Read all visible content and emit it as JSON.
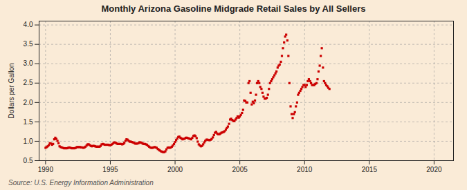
{
  "chart_data": {
    "type": "scatter",
    "title": "Monthly Arizona Gasoline Midgrade Retail Sales by All Sellers",
    "y_label": "Dollars per Gallon",
    "source": "Source: U.S. Energy Information Administration",
    "color": "#cc0000",
    "marker": "square",
    "grid": true,
    "xlim": [
      1989.5,
      2021.5
    ],
    "ylim": [
      0.5,
      4.1
    ],
    "xticks": [
      1990,
      1995,
      2000,
      2005,
      2010,
      2015,
      2020
    ],
    "yticks": [
      0.5,
      {
        "value": 1.0,
        "label": "1.0"
      },
      1.5,
      {
        "value": 2.0,
        "label": "2.0"
      },
      2.5,
      {
        "value": 3.0,
        "label": "3.0"
      },
      3.5,
      {
        "value": 4.0,
        "label": "4.0"
      }
    ],
    "x": [
      1990.0,
      1990.08,
      1990.17,
      1990.25,
      1990.33,
      1990.42,
      1990.5,
      1990.58,
      1990.67,
      1990.75,
      1990.83,
      1990.92,
      1991.0,
      1991.08,
      1991.17,
      1991.25,
      1991.33,
      1991.42,
      1991.5,
      1991.58,
      1991.67,
      1991.75,
      1991.83,
      1991.92,
      1992.0,
      1992.08,
      1992.17,
      1992.25,
      1992.33,
      1992.42,
      1992.5,
      1992.58,
      1992.67,
      1992.75,
      1992.83,
      1992.92,
      1993.0,
      1993.08,
      1993.17,
      1993.25,
      1993.33,
      1993.42,
      1993.5,
      1993.58,
      1993.67,
      1993.75,
      1993.83,
      1993.92,
      1994.0,
      1994.08,
      1994.17,
      1994.25,
      1994.33,
      1994.42,
      1994.5,
      1994.58,
      1994.67,
      1994.75,
      1994.83,
      1994.92,
      1995.0,
      1995.08,
      1995.17,
      1995.25,
      1995.33,
      1995.42,
      1995.5,
      1995.58,
      1995.67,
      1995.75,
      1995.83,
      1995.92,
      1996.0,
      1996.08,
      1996.17,
      1996.25,
      1996.33,
      1996.42,
      1996.5,
      1996.58,
      1996.67,
      1996.75,
      1996.83,
      1996.92,
      1997.0,
      1997.08,
      1997.17,
      1997.25,
      1997.33,
      1997.42,
      1997.5,
      1997.58,
      1997.67,
      1997.75,
      1997.83,
      1997.92,
      1998.0,
      1998.08,
      1998.17,
      1998.25,
      1998.33,
      1998.42,
      1998.5,
      1998.58,
      1998.67,
      1998.75,
      1998.83,
      1998.92,
      1999.0,
      1999.08,
      1999.17,
      1999.25,
      1999.33,
      1999.42,
      1999.5,
      1999.58,
      1999.67,
      1999.75,
      1999.83,
      1999.92,
      2000.0,
      2000.08,
      2000.17,
      2000.25,
      2000.33,
      2000.42,
      2000.5,
      2000.58,
      2000.67,
      2000.75,
      2000.83,
      2000.92,
      2001.0,
      2001.08,
      2001.17,
      2001.25,
      2001.33,
      2001.42,
      2001.5,
      2001.58,
      2001.67,
      2001.75,
      2001.83,
      2001.92,
      2002.0,
      2002.08,
      2002.17,
      2002.25,
      2002.33,
      2002.42,
      2002.5,
      2002.58,
      2002.67,
      2002.75,
      2002.83,
      2002.92,
      2003.0,
      2003.08,
      2003.17,
      2003.25,
      2003.33,
      2003.42,
      2003.5,
      2003.58,
      2003.67,
      2003.75,
      2003.83,
      2003.92,
      2004.0,
      2004.08,
      2004.17,
      2004.25,
      2004.33,
      2004.42,
      2004.5,
      2004.58,
      2004.67,
      2004.75,
      2004.83,
      2004.92,
      2005.0,
      2005.08,
      2005.17,
      2005.25,
      2005.33,
      2005.42,
      2005.5,
      2005.58,
      2005.67,
      2005.75,
      2005.83,
      2005.92,
      2006.0,
      2006.08,
      2006.17,
      2006.25,
      2006.33,
      2006.42,
      2006.5,
      2006.58,
      2006.67,
      2006.75,
      2006.83,
      2006.92,
      2007.0,
      2007.08,
      2007.17,
      2007.25,
      2007.33,
      2007.42,
      2007.5,
      2007.58,
      2007.67,
      2007.75,
      2007.83,
      2007.92,
      2008.0,
      2008.08,
      2008.17,
      2008.25,
      2008.33,
      2008.42,
      2008.5,
      2008.58,
      2008.67,
      2008.75,
      2008.83,
      2008.92,
      2009.0,
      2009.08,
      2009.17,
      2009.25,
      2009.33,
      2009.42,
      2009.5,
      2009.58,
      2009.67,
      2009.75,
      2009.83,
      2009.92,
      2010.0,
      2010.08,
      2010.17,
      2010.25,
      2010.33,
      2010.42,
      2010.5,
      2010.58,
      2010.67,
      2010.75,
      2010.83,
      2010.92,
      2011.0,
      2011.08,
      2011.17,
      2011.25,
      2011.33,
      2011.42,
      2011.5,
      2011.58,
      2011.67,
      2011.75,
      2011.83,
      2011.92
    ],
    "values": [
      0.83,
      0.85,
      0.87,
      0.9,
      0.95,
      0.94,
      0.91,
      0.93,
      1.05,
      1.09,
      1.06,
      1.01,
      0.95,
      0.87,
      0.85,
      0.84,
      0.83,
      0.82,
      0.82,
      0.82,
      0.82,
      0.83,
      0.84,
      0.83,
      0.82,
      0.82,
      0.82,
      0.82,
      0.83,
      0.85,
      0.85,
      0.85,
      0.85,
      0.84,
      0.84,
      0.83,
      0.84,
      0.86,
      0.89,
      0.92,
      0.92,
      0.9,
      0.88,
      0.87,
      0.88,
      0.88,
      0.87,
      0.86,
      0.86,
      0.86,
      0.86,
      0.88,
      0.92,
      0.93,
      0.92,
      0.91,
      0.91,
      0.91,
      0.91,
      0.9,
      0.9,
      0.91,
      0.93,
      0.96,
      0.97,
      0.96,
      0.94,
      0.93,
      0.93,
      0.93,
      0.93,
      0.92,
      0.93,
      0.96,
      1.01,
      1.05,
      1.04,
      1.01,
      0.99,
      0.99,
      0.98,
      0.97,
      0.96,
      0.94,
      0.94,
      0.94,
      0.95,
      0.97,
      0.97,
      0.96,
      0.94,
      0.93,
      0.93,
      0.92,
      0.91,
      0.88,
      0.86,
      0.84,
      0.83,
      0.83,
      0.84,
      0.85,
      0.84,
      0.83,
      0.8,
      0.78,
      0.76,
      0.74,
      0.73,
      0.72,
      0.72,
      0.74,
      0.79,
      0.83,
      0.84,
      0.83,
      0.84,
      0.86,
      0.89,
      0.93,
      0.98,
      1.03,
      1.07,
      1.11,
      1.12,
      1.09,
      1.07,
      1.05,
      1.06,
      1.07,
      1.09,
      1.09,
      1.08,
      1.07,
      1.06,
      1.05,
      1.09,
      1.14,
      1.15,
      1.13,
      1.08,
      0.99,
      0.92,
      0.89,
      0.87,
      0.88,
      0.92,
      0.97,
      1.01,
      1.04,
      1.04,
      1.03,
      1.03,
      1.04,
      1.06,
      1.1,
      1.16,
      1.22,
      1.24,
      1.2,
      1.18,
      1.18,
      1.2,
      1.22,
      1.23,
      1.24,
      1.26,
      1.3,
      1.34,
      1.38,
      1.45,
      1.56,
      1.58,
      1.55,
      1.52,
      1.52,
      1.56,
      1.6,
      1.64,
      1.61,
      1.64,
      1.68,
      1.73,
      1.81,
      2.05,
      2.04,
      2.0,
      2.0,
      2.5,
      2.55,
      2.25,
      1.95,
      2.02,
      1.98,
      2.05,
      2.2,
      2.5,
      2.55,
      2.5,
      2.4,
      2.35,
      2.25,
      2.15,
      2.1,
      2.1,
      2.12,
      2.2,
      2.35,
      2.5,
      2.55,
      2.6,
      2.65,
      2.7,
      2.75,
      2.8,
      2.9,
      2.95,
      2.98,
      3.05,
      3.2,
      3.4,
      3.55,
      3.7,
      3.75,
      3.6,
      3.2,
      2.5,
      1.9,
      1.7,
      1.6,
      1.7,
      1.75,
      1.9,
      2.0,
      2.2,
      2.25,
      2.3,
      2.35,
      2.4,
      2.45,
      2.45,
      2.4,
      2.45,
      2.55,
      2.6,
      2.55,
      2.5,
      2.45,
      2.45,
      2.45,
      2.48,
      2.5,
      2.6,
      2.8,
      2.95,
      3.2,
      3.4,
      2.9,
      2.55,
      2.5,
      2.45,
      2.42,
      2.38,
      2.35
    ]
  }
}
